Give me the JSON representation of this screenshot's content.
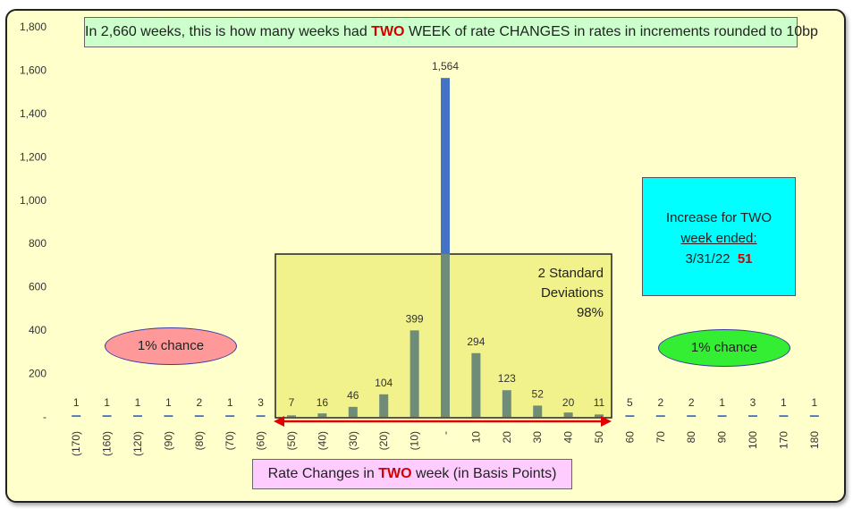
{
  "chart_data": {
    "type": "bar",
    "title_parts": [
      "In 2,660 weeks, this is how many weeks had ",
      "TWO",
      " WEEK of rate CHANGES in rates in increments rounded to 10bp"
    ],
    "xlabel_parts": [
      "Rate Changes in ",
      "TWO",
      " week (in Basis Points)"
    ],
    "ylabel": "",
    "ylim": [
      0,
      1800
    ],
    "yticks": [
      "-",
      "200",
      "400",
      "600",
      "800",
      "1,000",
      "1,200",
      "1,400",
      "1,600",
      "1,800"
    ],
    "categories": [
      "(170)",
      "(160)",
      "(120)",
      "(90)",
      "(80)",
      "(70)",
      "(60)",
      "(50)",
      "(40)",
      "(30)",
      "(20)",
      "(10)",
      "-",
      "10",
      "20",
      "30",
      "40",
      "50",
      "60",
      "70",
      "80",
      "90",
      "100",
      "170",
      "180"
    ],
    "values": [
      1,
      1,
      1,
      1,
      2,
      1,
      3,
      7,
      16,
      46,
      104,
      399,
      1564,
      294,
      123,
      52,
      20,
      11,
      5,
      2,
      2,
      1,
      3,
      1,
      1
    ],
    "value_labels": [
      "1",
      "1",
      "1",
      "1",
      "2",
      "1",
      "3",
      "7",
      "16",
      "46",
      "104",
      "399",
      "1,564",
      "294",
      "123",
      "52",
      "20",
      "11",
      "5",
      "2",
      "2",
      "1",
      "3",
      "1",
      "1"
    ],
    "grid": false,
    "legend": "none"
  },
  "annotations": {
    "std_dev": [
      "2 Standard",
      "Deviations",
      "98%"
    ],
    "chance_left": "1% chance",
    "chance_right": "1% chance",
    "info_line1": "Increase for TWO",
    "info_line2": "week ended:",
    "info_date": "3/31/22",
    "info_value": "51"
  },
  "colors": {
    "bar": "#4472c4",
    "bar_in_band": "#6e8c78",
    "band_fill": "#f2f28c",
    "title_bg": "#ccffcc",
    "xlabel_bg": "#ffccff",
    "info_bg": "#00ffff",
    "chance_left_bg": "#ff9999",
    "chance_right_bg": "#33ee33",
    "highlight_text": "#d40000",
    "arrow": "#e00000"
  }
}
